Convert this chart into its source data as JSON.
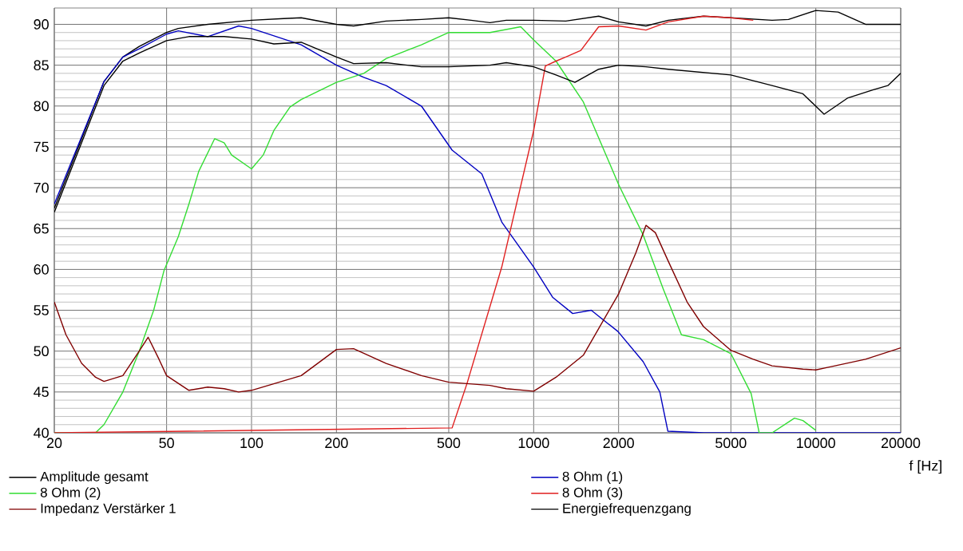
{
  "chart_data": {
    "type": "line",
    "xlabel": "f [Hz]",
    "log": "x",
    "xlim": [
      20,
      20000
    ],
    "ylim": [
      40,
      92
    ],
    "xticks": [
      20,
      50,
      100,
      200,
      500,
      1000,
      2000,
      5000,
      10000,
      20000
    ],
    "yticks": [
      40,
      45,
      50,
      55,
      60,
      65,
      70,
      75,
      80,
      85,
      90
    ],
    "grid": true,
    "legend": "bottom",
    "marker": "none",
    "line_style": "solid",
    "series": [
      {
        "name": "Amplitude gesamt",
        "color": "#000000",
        "x": [
          20,
          25,
          30,
          35,
          40,
          50,
          55,
          70,
          100,
          130,
          150,
          200,
          230,
          300,
          400,
          500,
          600,
          700,
          800,
          1000,
          1300,
          1700,
          2000,
          2500,
          3000,
          4000,
          5000,
          7000,
          8000,
          10000,
          12000,
          15000,
          20000
        ],
        "values": [
          67.5,
          76,
          83,
          86,
          87.3,
          89,
          89.5,
          90,
          90.5,
          90.7,
          90.8,
          90,
          89.8,
          90.4,
          90.6,
          90.8,
          90.5,
          90.2,
          90.5,
          90.5,
          90.4,
          91,
          90.3,
          89.8,
          90.5,
          91,
          90.8,
          90.5,
          90.6,
          91.7,
          91.5,
          90,
          90
        ]
      },
      {
        "name": "8 Ohm (1)",
        "color": "#0000c0",
        "x": [
          20,
          30,
          35,
          40,
          50,
          55,
          70,
          90,
          100,
          150,
          200,
          250,
          300,
          400,
          514,
          655,
          771,
          1000,
          1167,
          1375,
          1600,
          1990,
          2445,
          2800,
          2990,
          4000,
          10000,
          20000
        ],
        "values": [
          68,
          83,
          86,
          87,
          88.8,
          89.2,
          88.5,
          89.8,
          89.5,
          87.5,
          85,
          83.5,
          82.5,
          80,
          74.6,
          71.7,
          65.8,
          60.3,
          56.6,
          54.6,
          55,
          52.4,
          48.7,
          45,
          40.2,
          40,
          40,
          40
        ]
      },
      {
        "name": "8 Ohm (2)",
        "color": "#33dd33",
        "x": [
          20,
          28,
          30,
          35,
          40,
          45,
          49,
          55,
          60,
          65,
          74,
          80,
          85,
          100,
          110,
          120,
          137,
          150,
          200,
          250,
          300,
          400,
          500,
          700,
          900,
          1000,
          1200,
          1500,
          2000,
          2445,
          2880,
          3340,
          4000,
          5000,
          5900,
          6300,
          7000,
          8400,
          9000,
          10000
        ],
        "values": [
          40,
          40,
          41,
          45,
          50,
          55,
          59.9,
          64,
          68,
          72,
          76,
          75.5,
          74,
          72.3,
          74,
          77,
          79.9,
          80.8,
          82.9,
          84,
          85.8,
          87.5,
          89,
          89,
          89.7,
          88.1,
          85.5,
          80.5,
          70.4,
          64.2,
          57.6,
          52,
          51.4,
          49.7,
          44.8,
          40,
          40,
          41.8,
          41.5,
          40.3
        ]
      },
      {
        "name": "8 Ohm (3)",
        "color": "#e02020",
        "x": [
          20,
          514,
          580,
          771,
          1000,
          1100,
          1200,
          1300,
          1470,
          1700,
          2000,
          2500,
          3000,
          4000,
          5000,
          6000
        ],
        "values": [
          40,
          40.6,
          46,
          60.3,
          77,
          84.9,
          85.5,
          86,
          86.8,
          89.7,
          89.8,
          89.3,
          90.3,
          91,
          90.8,
          90.5
        ]
      },
      {
        "name": "Impedanz Verstärker 1",
        "color": "#800000",
        "x": [
          20,
          22,
          25,
          28,
          30,
          35,
          40,
          43,
          47,
          50,
          60,
          70,
          80,
          90,
          100,
          150,
          200,
          230,
          300,
          400,
          500,
          700,
          800,
          1000,
          1200,
          1500,
          2000,
          2300,
          2500,
          2700,
          3000,
          3500,
          4000,
          5000,
          6000,
          7000,
          9000,
          10000,
          11000,
          15000,
          20000
        ],
        "values": [
          56,
          52,
          48.5,
          46.8,
          46.3,
          47,
          50,
          51.7,
          49,
          47,
          45.2,
          45.6,
          45.4,
          45,
          45.2,
          47,
          50.2,
          50.3,
          48.5,
          47,
          46.2,
          45.8,
          45.4,
          45.1,
          46.8,
          49.5,
          57,
          62,
          65.4,
          64.5,
          61,
          56,
          53,
          50.1,
          49,
          48.2,
          47.8,
          47.7,
          48,
          49,
          50.4
        ]
      },
      {
        "name": "Energiefrequenzgang",
        "color": "#000000",
        "x": [
          20,
          30,
          35,
          40,
          50,
          60,
          80,
          100,
          120,
          150,
          200,
          230,
          300,
          400,
          500,
          700,
          800,
          1000,
          1200,
          1400,
          1700,
          2000,
          2500,
          3000,
          5000,
          7000,
          9000,
          10700,
          13000,
          16000,
          18000,
          20000
        ],
        "values": [
          67,
          82.5,
          85.5,
          86.5,
          88,
          88.5,
          88.5,
          88.2,
          87.6,
          87.8,
          86,
          85.2,
          85.3,
          84.8,
          84.8,
          85,
          85.3,
          84.8,
          83.8,
          82.9,
          84.5,
          85,
          84.8,
          84.5,
          83.8,
          82.5,
          81.5,
          79,
          81,
          82,
          82.5,
          84
        ]
      }
    ]
  }
}
